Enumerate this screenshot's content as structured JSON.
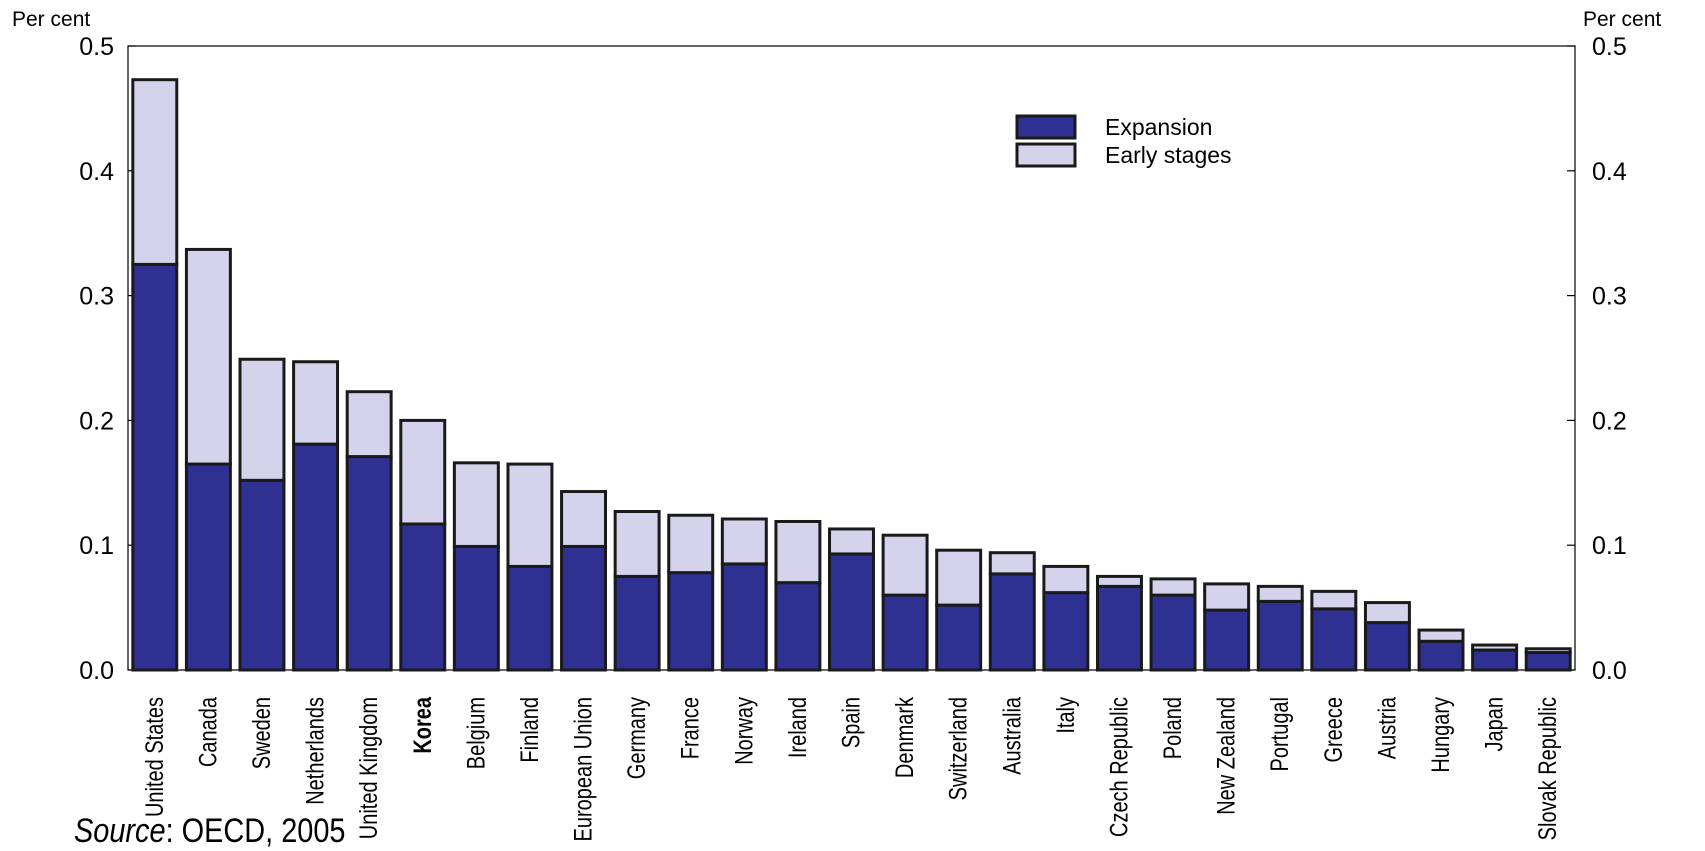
{
  "chart_data": {
    "type": "bar",
    "stacked": true,
    "ylabel_left": "Per cent",
    "ylabel_right": "Per cent",
    "ylim": [
      0,
      0.5
    ],
    "yticks": [
      "0.0",
      "0.1",
      "0.2",
      "0.3",
      "0.4",
      "0.5"
    ],
    "categories": [
      "United States",
      "Canada",
      "Sweden",
      "Netherlands",
      "United Kingdom",
      "Korea",
      "Belgium",
      "Finland",
      "European Union",
      "Germany",
      "France",
      "Norway",
      "Ireland",
      "Spain",
      "Denmark",
      "Switzerland",
      "Australia",
      "Italy",
      "Czech Republic",
      "Poland",
      "New Zealand",
      "Portugal",
      "Greece",
      "Austria",
      "Hungary",
      "Japan",
      "Slovak Republic"
    ],
    "highlight_category": "Korea",
    "series": [
      {
        "name": "Expansion",
        "color": "#2e3192",
        "values": [
          0.325,
          0.165,
          0.152,
          0.181,
          0.171,
          0.117,
          0.099,
          0.083,
          0.099,
          0.075,
          0.078,
          0.085,
          0.07,
          0.093,
          0.06,
          0.052,
          0.077,
          0.062,
          0.067,
          0.06,
          0.048,
          0.055,
          0.049,
          0.038,
          0.023,
          0.016,
          0.014
        ]
      },
      {
        "name": "Early stages",
        "color": "#d4d3eb",
        "values": [
          0.148,
          0.172,
          0.097,
          0.066,
          0.052,
          0.083,
          0.067,
          0.082,
          0.044,
          0.052,
          0.046,
          0.036,
          0.049,
          0.02,
          0.048,
          0.044,
          0.017,
          0.021,
          0.008,
          0.013,
          0.021,
          0.012,
          0.014,
          0.016,
          0.009,
          0.004,
          0.003
        ]
      }
    ],
    "legend_position": "top-right",
    "grid": false
  },
  "source": {
    "label": "Source",
    "text": ": OECD, 2005"
  }
}
